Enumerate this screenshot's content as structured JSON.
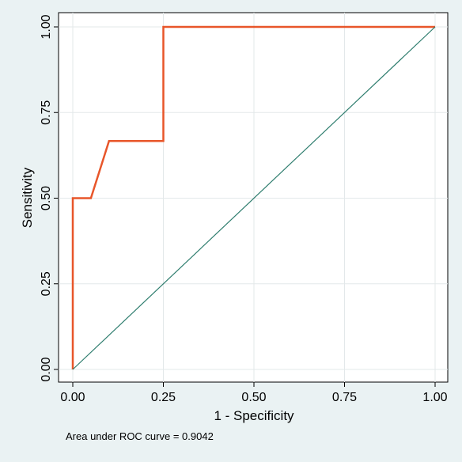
{
  "chart_data": {
    "type": "line",
    "title": "",
    "xlabel": "1 - Specificity",
    "ylabel": "Sensitivity",
    "xlim": [
      0,
      1
    ],
    "ylim": [
      0,
      1
    ],
    "x_ticks": [
      0,
      0.25,
      0.5,
      0.75,
      1
    ],
    "x_tick_labels": [
      "0.00",
      "0.25",
      "0.50",
      "0.75",
      "1.00"
    ],
    "y_ticks": [
      0,
      0.25,
      0.5,
      0.75,
      1
    ],
    "y_tick_labels": [
      "0.00",
      "0.25",
      "0.50",
      "0.75",
      "1.00"
    ],
    "grid": true,
    "series": [
      {
        "color": "#e8562a",
        "x": [
          0,
          0,
          0.05,
          0.1,
          0.25,
          0.25,
          1
        ],
        "y": [
          0,
          0.5,
          0.5,
          0.6667,
          0.6667,
          1,
          1
        ]
      },
      {
        "color": "#2e7d6e",
        "x": [
          0,
          1
        ],
        "y": [
          0,
          1
        ]
      }
    ],
    "annotation": "Area under ROC curve = 0.9042"
  },
  "colors": {
    "background": "#eaf2f3",
    "plot_background": "#ffffff",
    "grid": "#e3e8ea",
    "roc_curve": "#e8562a",
    "reference_line": "#2e7d6e"
  }
}
